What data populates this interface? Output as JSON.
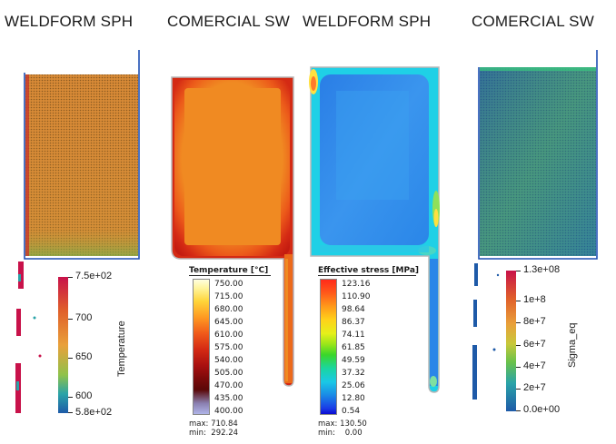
{
  "titles": [
    "WELDFORM SPH",
    "COMERCIAL SW",
    "WELDFORM SPH",
    "COMERCIAL SW"
  ],
  "legend1": {
    "label": "Temperature",
    "ticks": [
      "7.5e+02",
      "700",
      "650",
      "600",
      "5.8e+02"
    ],
    "gradient": [
      "#c8124a",
      "#e0602a",
      "#e9a03a",
      "#8fc24a",
      "#2aa3a8",
      "#1e5aa8"
    ]
  },
  "legend2": {
    "title": "Temperature [°C]",
    "ticks": [
      "750.00",
      "715.00",
      "680.00",
      "645.00",
      "610.00",
      "575.00",
      "540.00",
      "505.00",
      "470.00",
      "435.00",
      "400.00"
    ],
    "min_max": [
      "max: 710.84",
      "min:  292.24"
    ]
  },
  "legend3": {
    "title": "Effective stress [MPa]",
    "ticks": [
      "123.16",
      "110.90",
      "98.64",
      "86.37",
      "74.11",
      "61.85",
      "49.59",
      "37.32",
      "25.06",
      "12.80",
      "0.54"
    ],
    "min_max": [
      "max: 130.50",
      "min:    0.00"
    ]
  },
  "legend4": {
    "label": "Sigma_eq",
    "ticks": [
      "1.3e+08",
      "1e+8",
      "8e+7",
      "6e+7",
      "4e+7",
      "2e+7",
      "0.0e+00"
    ]
  },
  "colors": {
    "orange": "#e8892f",
    "red": "#d42a14",
    "blue_field": "#2f8ee8",
    "cyan": "#12d6e0",
    "green_mesh": "#3a9a78",
    "frame_blue": "#1e4fb4"
  }
}
